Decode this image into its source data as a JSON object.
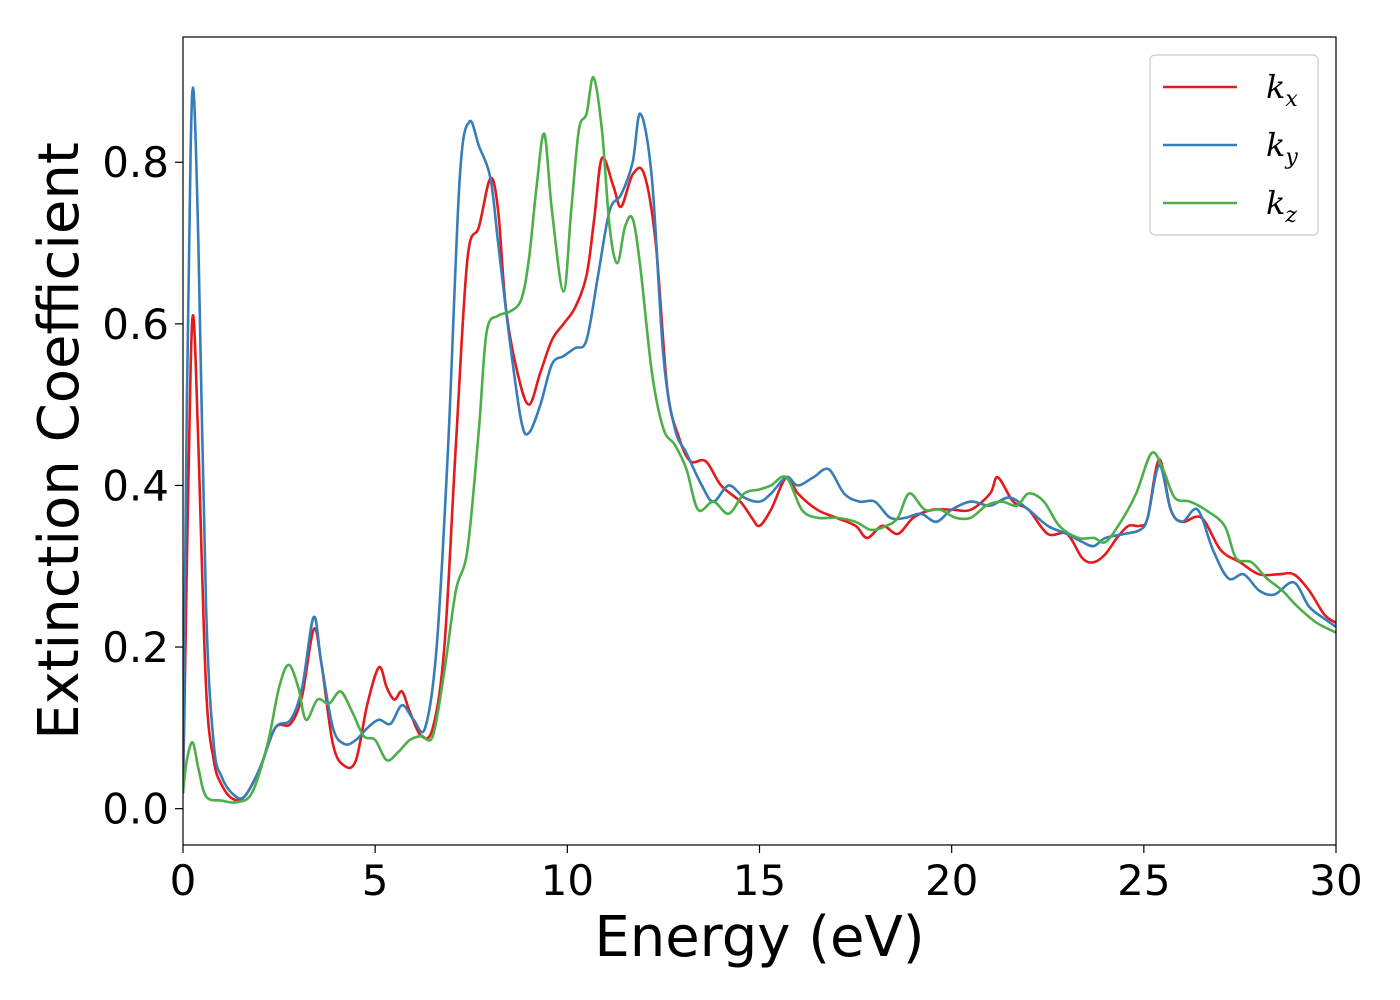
{
  "chart_data": {
    "type": "line",
    "title": "",
    "xlabel": "Energy (eV)",
    "ylabel": "Extinction Coefficient",
    "xlim": [
      0,
      30
    ],
    "ylim": [
      -0.045,
      0.955
    ],
    "xticks": [
      0,
      5,
      10,
      15,
      20,
      25,
      30
    ],
    "xtick_labels": [
      "0",
      "5",
      "10",
      "15",
      "20",
      "25",
      "30"
    ],
    "yticks": [
      0.0,
      0.2,
      0.4,
      0.6,
      0.8
    ],
    "ytick_labels": [
      "0.0",
      "0.2",
      "0.4",
      "0.6",
      "0.8"
    ],
    "grid": false,
    "legend_position": "top-right",
    "series": [
      {
        "name": "k",
        "subscript": "x",
        "color": "#e41a1c",
        "points": [
          [
            0,
            0.02
          ],
          [
            0.1,
            0.3
          ],
          [
            0.2,
            0.55
          ],
          [
            0.28,
            0.605
          ],
          [
            0.4,
            0.45
          ],
          [
            0.6,
            0.15
          ],
          [
            0.8,
            0.06
          ],
          [
            1.0,
            0.03
          ],
          [
            1.3,
            0.012
          ],
          [
            1.6,
            0.015
          ],
          [
            2.0,
            0.05
          ],
          [
            2.4,
            0.1
          ],
          [
            2.8,
            0.105
          ],
          [
            3.1,
            0.14
          ],
          [
            3.4,
            0.222
          ],
          [
            3.6,
            0.18
          ],
          [
            3.9,
            0.08
          ],
          [
            4.2,
            0.053
          ],
          [
            4.5,
            0.06
          ],
          [
            4.8,
            0.13
          ],
          [
            5.1,
            0.175
          ],
          [
            5.3,
            0.15
          ],
          [
            5.5,
            0.135
          ],
          [
            5.7,
            0.145
          ],
          [
            5.9,
            0.12
          ],
          [
            6.2,
            0.09
          ],
          [
            6.5,
            0.1
          ],
          [
            6.8,
            0.2
          ],
          [
            7.1,
            0.45
          ],
          [
            7.4,
            0.68
          ],
          [
            7.7,
            0.72
          ],
          [
            8.0,
            0.78
          ],
          [
            8.2,
            0.74
          ],
          [
            8.4,
            0.62
          ],
          [
            8.7,
            0.54
          ],
          [
            9.0,
            0.5
          ],
          [
            9.3,
            0.54
          ],
          [
            9.6,
            0.58
          ],
          [
            9.9,
            0.6
          ],
          [
            10.2,
            0.62
          ],
          [
            10.5,
            0.66
          ],
          [
            10.7,
            0.73
          ],
          [
            10.9,
            0.805
          ],
          [
            11.2,
            0.77
          ],
          [
            11.4,
            0.745
          ],
          [
            11.7,
            0.785
          ],
          [
            12.0,
            0.785
          ],
          [
            12.3,
            0.7
          ],
          [
            12.6,
            0.52
          ],
          [
            12.9,
            0.46
          ],
          [
            13.2,
            0.43
          ],
          [
            13.6,
            0.43
          ],
          [
            14.0,
            0.4
          ],
          [
            14.5,
            0.38
          ],
          [
            14.8,
            0.36
          ],
          [
            15.0,
            0.35
          ],
          [
            15.3,
            0.37
          ],
          [
            15.7,
            0.41
          ],
          [
            16.0,
            0.39
          ],
          [
            16.5,
            0.37
          ],
          [
            17.0,
            0.36
          ],
          [
            17.5,
            0.35
          ],
          [
            17.8,
            0.335
          ],
          [
            18.2,
            0.35
          ],
          [
            18.6,
            0.34
          ],
          [
            19.0,
            0.36
          ],
          [
            19.5,
            0.37
          ],
          [
            20.0,
            0.37
          ],
          [
            20.5,
            0.37
          ],
          [
            21.0,
            0.39
          ],
          [
            21.2,
            0.41
          ],
          [
            21.6,
            0.38
          ],
          [
            22.0,
            0.37
          ],
          [
            22.5,
            0.34
          ],
          [
            23.0,
            0.34
          ],
          [
            23.4,
            0.31
          ],
          [
            23.7,
            0.305
          ],
          [
            24.0,
            0.315
          ],
          [
            24.3,
            0.335
          ],
          [
            24.6,
            0.35
          ],
          [
            24.9,
            0.35
          ],
          [
            25.1,
            0.36
          ],
          [
            25.4,
            0.432
          ],
          [
            25.7,
            0.37
          ],
          [
            26.0,
            0.355
          ],
          [
            26.5,
            0.36
          ],
          [
            27.0,
            0.32
          ],
          [
            27.5,
            0.305
          ],
          [
            28.0,
            0.29
          ],
          [
            28.5,
            0.29
          ],
          [
            28.9,
            0.29
          ],
          [
            29.3,
            0.27
          ],
          [
            29.7,
            0.24
          ],
          [
            30.0,
            0.23
          ]
        ]
      },
      {
        "name": "k",
        "subscript": "y",
        "color": "#377eb8",
        "points": [
          [
            0,
            0.02
          ],
          [
            0.1,
            0.5
          ],
          [
            0.2,
            0.82
          ],
          [
            0.28,
            0.885
          ],
          [
            0.4,
            0.7
          ],
          [
            0.6,
            0.25
          ],
          [
            0.8,
            0.08
          ],
          [
            1.0,
            0.04
          ],
          [
            1.3,
            0.018
          ],
          [
            1.6,
            0.015
          ],
          [
            2.0,
            0.05
          ],
          [
            2.4,
            0.1
          ],
          [
            2.8,
            0.11
          ],
          [
            3.1,
            0.15
          ],
          [
            3.4,
            0.237
          ],
          [
            3.6,
            0.18
          ],
          [
            3.9,
            0.1
          ],
          [
            4.2,
            0.08
          ],
          [
            4.5,
            0.085
          ],
          [
            4.8,
            0.1
          ],
          [
            5.1,
            0.11
          ],
          [
            5.4,
            0.105
          ],
          [
            5.7,
            0.128
          ],
          [
            6.0,
            0.11
          ],
          [
            6.3,
            0.1
          ],
          [
            6.6,
            0.2
          ],
          [
            6.9,
            0.45
          ],
          [
            7.2,
            0.78
          ],
          [
            7.45,
            0.85
          ],
          [
            7.7,
            0.82
          ],
          [
            8.0,
            0.78
          ],
          [
            8.2,
            0.7
          ],
          [
            8.5,
            0.58
          ],
          [
            8.8,
            0.48
          ],
          [
            9.0,
            0.465
          ],
          [
            9.3,
            0.5
          ],
          [
            9.6,
            0.55
          ],
          [
            9.9,
            0.56
          ],
          [
            10.2,
            0.57
          ],
          [
            10.5,
            0.58
          ],
          [
            10.8,
            0.66
          ],
          [
            11.1,
            0.74
          ],
          [
            11.4,
            0.76
          ],
          [
            11.7,
            0.8
          ],
          [
            11.9,
            0.86
          ],
          [
            12.2,
            0.78
          ],
          [
            12.5,
            0.56
          ],
          [
            12.8,
            0.47
          ],
          [
            13.1,
            0.44
          ],
          [
            13.5,
            0.4
          ],
          [
            13.8,
            0.38
          ],
          [
            14.2,
            0.4
          ],
          [
            14.6,
            0.385
          ],
          [
            15.0,
            0.38
          ],
          [
            15.3,
            0.39
          ],
          [
            15.7,
            0.41
          ],
          [
            16.0,
            0.4
          ],
          [
            16.4,
            0.41
          ],
          [
            16.8,
            0.42
          ],
          [
            17.2,
            0.39
          ],
          [
            17.6,
            0.38
          ],
          [
            18.0,
            0.38
          ],
          [
            18.4,
            0.36
          ],
          [
            18.8,
            0.36
          ],
          [
            19.2,
            0.365
          ],
          [
            19.6,
            0.355
          ],
          [
            20.0,
            0.37
          ],
          [
            20.5,
            0.38
          ],
          [
            21.0,
            0.375
          ],
          [
            21.5,
            0.385
          ],
          [
            22.0,
            0.37
          ],
          [
            22.5,
            0.35
          ],
          [
            23.0,
            0.34
          ],
          [
            23.4,
            0.33
          ],
          [
            23.7,
            0.325
          ],
          [
            24.0,
            0.335
          ],
          [
            24.5,
            0.34
          ],
          [
            24.9,
            0.345
          ],
          [
            25.1,
            0.36
          ],
          [
            25.4,
            0.425
          ],
          [
            25.7,
            0.37
          ],
          [
            26.0,
            0.355
          ],
          [
            26.4,
            0.37
          ],
          [
            26.8,
            0.32
          ],
          [
            27.2,
            0.285
          ],
          [
            27.6,
            0.29
          ],
          [
            28.0,
            0.27
          ],
          [
            28.4,
            0.265
          ],
          [
            28.9,
            0.28
          ],
          [
            29.3,
            0.25
          ],
          [
            29.7,
            0.235
          ],
          [
            30.0,
            0.225
          ]
        ]
      },
      {
        "name": "k",
        "subscript": "z",
        "color": "#4daf4a",
        "points": [
          [
            0,
            0.02
          ],
          [
            0.1,
            0.06
          ],
          [
            0.25,
            0.082
          ],
          [
            0.4,
            0.05
          ],
          [
            0.6,
            0.015
          ],
          [
            1.0,
            0.01
          ],
          [
            1.4,
            0.008
          ],
          [
            1.8,
            0.02
          ],
          [
            2.2,
            0.08
          ],
          [
            2.5,
            0.15
          ],
          [
            2.75,
            0.178
          ],
          [
            3.0,
            0.15
          ],
          [
            3.2,
            0.11
          ],
          [
            3.5,
            0.135
          ],
          [
            3.8,
            0.13
          ],
          [
            4.1,
            0.145
          ],
          [
            4.4,
            0.12
          ],
          [
            4.7,
            0.09
          ],
          [
            5.0,
            0.085
          ],
          [
            5.3,
            0.06
          ],
          [
            5.6,
            0.07
          ],
          [
            5.9,
            0.085
          ],
          [
            6.2,
            0.09
          ],
          [
            6.5,
            0.09
          ],
          [
            6.8,
            0.17
          ],
          [
            7.1,
            0.27
          ],
          [
            7.4,
            0.32
          ],
          [
            7.7,
            0.47
          ],
          [
            7.9,
            0.59
          ],
          [
            8.2,
            0.61
          ],
          [
            8.5,
            0.615
          ],
          [
            8.8,
            0.63
          ],
          [
            9.0,
            0.68
          ],
          [
            9.2,
            0.77
          ],
          [
            9.4,
            0.835
          ],
          [
            9.6,
            0.74
          ],
          [
            9.9,
            0.64
          ],
          [
            10.1,
            0.74
          ],
          [
            10.3,
            0.84
          ],
          [
            10.5,
            0.86
          ],
          [
            10.68,
            0.905
          ],
          [
            10.9,
            0.84
          ],
          [
            11.1,
            0.72
          ],
          [
            11.3,
            0.675
          ],
          [
            11.5,
            0.72
          ],
          [
            11.7,
            0.73
          ],
          [
            11.9,
            0.67
          ],
          [
            12.2,
            0.54
          ],
          [
            12.5,
            0.47
          ],
          [
            12.8,
            0.45
          ],
          [
            13.1,
            0.42
          ],
          [
            13.4,
            0.37
          ],
          [
            13.8,
            0.38
          ],
          [
            14.2,
            0.365
          ],
          [
            14.6,
            0.39
          ],
          [
            15.0,
            0.395
          ],
          [
            15.3,
            0.4
          ],
          [
            15.7,
            0.41
          ],
          [
            16.1,
            0.37
          ],
          [
            16.5,
            0.36
          ],
          [
            17.0,
            0.36
          ],
          [
            17.5,
            0.355
          ],
          [
            17.9,
            0.345
          ],
          [
            18.3,
            0.35
          ],
          [
            18.6,
            0.36
          ],
          [
            18.9,
            0.39
          ],
          [
            19.3,
            0.37
          ],
          [
            19.7,
            0.37
          ],
          [
            20.1,
            0.36
          ],
          [
            20.5,
            0.36
          ],
          [
            20.9,
            0.375
          ],
          [
            21.3,
            0.38
          ],
          [
            21.7,
            0.375
          ],
          [
            22.0,
            0.39
          ],
          [
            22.4,
            0.38
          ],
          [
            22.8,
            0.35
          ],
          [
            23.3,
            0.335
          ],
          [
            23.7,
            0.335
          ],
          [
            24.0,
            0.33
          ],
          [
            24.4,
            0.355
          ],
          [
            24.8,
            0.39
          ],
          [
            25.2,
            0.44
          ],
          [
            25.5,
            0.42
          ],
          [
            25.8,
            0.385
          ],
          [
            26.2,
            0.38
          ],
          [
            26.6,
            0.37
          ],
          [
            27.1,
            0.35
          ],
          [
            27.4,
            0.31
          ],
          [
            27.8,
            0.305
          ],
          [
            28.2,
            0.285
          ],
          [
            28.6,
            0.27
          ],
          [
            29.0,
            0.25
          ],
          [
            29.5,
            0.23
          ],
          [
            30.0,
            0.218
          ]
        ]
      }
    ]
  }
}
